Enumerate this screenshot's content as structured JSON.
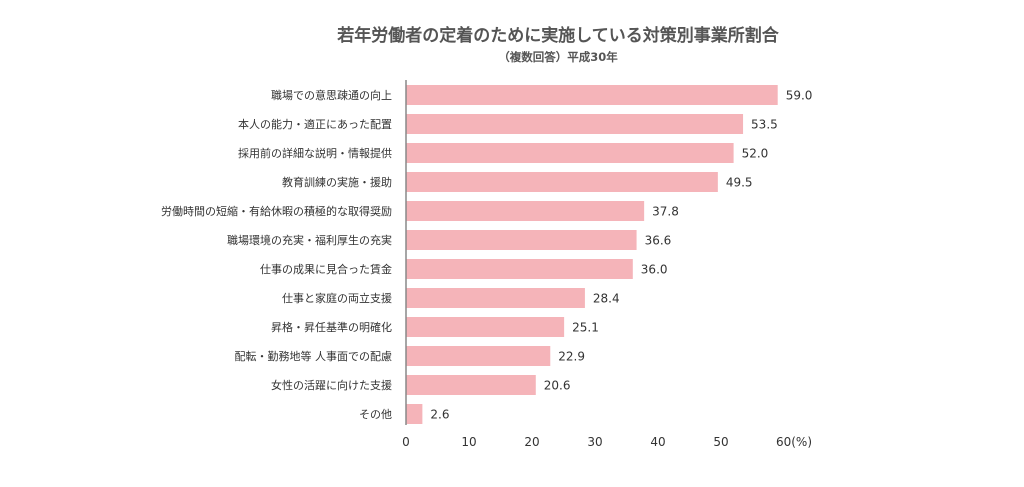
{
  "chart_data": {
    "type": "bar",
    "orientation": "horizontal",
    "title": "若年労働者の定着のために実施している対策別事業所割合",
    "subtitle": "（複数回答）平成30年",
    "categories": [
      "職場での意思疎通の向上",
      "本人の能力・適正にあった配置",
      "採用前の詳細な説明・情報提供",
      "教育訓練の実施・援助",
      "労働時間の短縮・有給休暇の積極的な取得奨励",
      "職場環境の充実・福利厚生の充実",
      "仕事の成果に見合った賃金",
      "仕事と家庭の両立支援",
      "昇格・昇任基準の明確化",
      "配転・勤務地等 人事面での配慮",
      "女性の活躍に向けた支援",
      "その他"
    ],
    "values": [
      59.0,
      53.5,
      52.0,
      49.5,
      37.8,
      36.6,
      36.0,
      28.4,
      25.1,
      22.9,
      20.6,
      2.6
    ],
    "value_labels": [
      "59.0",
      "53.5",
      "52.0",
      "49.5",
      "37.8",
      "36.6",
      "36.0",
      "28.4",
      "25.1",
      "22.9",
      "20.6",
      "2.6"
    ],
    "x_ticks": [
      0,
      10,
      20,
      30,
      40,
      50,
      60
    ],
    "x_tick_labels": [
      "0",
      "10",
      "20",
      "30",
      "40",
      "50",
      "60(%)"
    ],
    "xlim": [
      0,
      60
    ],
    "xlabel": "",
    "ylabel": "",
    "bar_color": "#f5b4b9",
    "axis_color": "#888888",
    "grid": false,
    "legend": false
  }
}
